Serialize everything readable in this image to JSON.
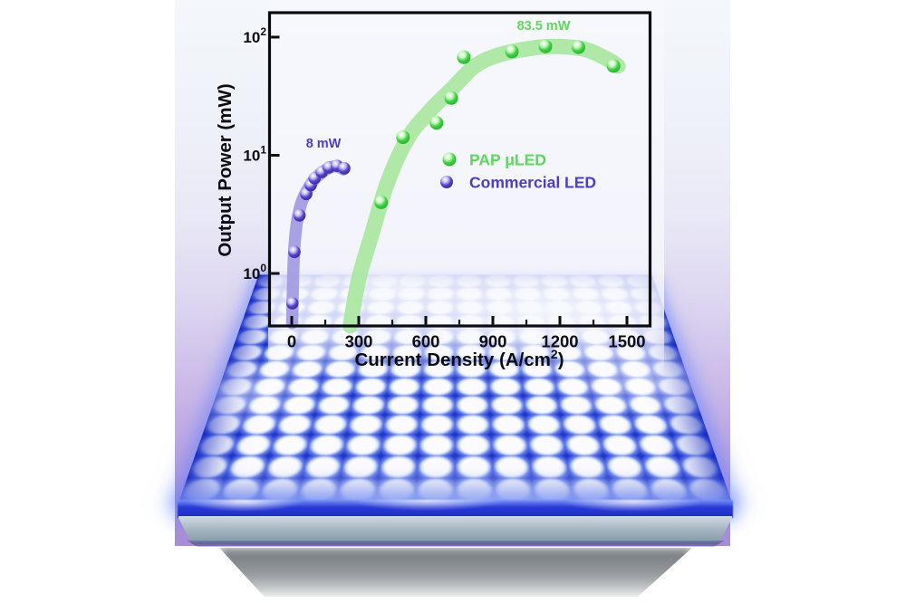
{
  "scene": {
    "description_colors": {
      "page_background": "#ffffff",
      "figure_gradient_top": "#f4f7fb",
      "figure_gradient_bottom": "#a78cd7",
      "panel_blue": "#2238cc",
      "led_dot": "#ffffff",
      "substrate_gray": "#a4b5c2",
      "shadow_gray": "#7d848a",
      "axis_black": "#0b0b12"
    },
    "panel": {
      "led_columns": 14,
      "led_rows": 13
    }
  },
  "chart_data": {
    "type": "scatter",
    "title": "",
    "xlabel": "Current Density (A/cm²)",
    "ylabel": "Output Power (mW)",
    "x_ticks": [
      0,
      300,
      600,
      900,
      1200,
      1500
    ],
    "x_minor_ticks": [
      150,
      450,
      750,
      1050,
      1350
    ],
    "y_scale": "log",
    "y_tick_base": "10",
    "y_tick_exponents": [
      0,
      1,
      2
    ],
    "xlim": [
      -100,
      1600
    ],
    "ylim": [
      0.35,
      160
    ],
    "grid": false,
    "legend_position": "center-right",
    "series": [
      {
        "name": "PAP μLED",
        "marker_color": "#3fcf42",
        "band_color": "#a9e7a1",
        "text_color": "#5ed85c",
        "x": [
          400,
          498,
          648,
          714,
          770,
          985,
          1135,
          1283,
          1440
        ],
        "y": [
          4.0,
          14.2,
          18.8,
          30.5,
          67.5,
          75.5,
          83.5,
          82.0,
          57.0
        ],
        "trend_band": [
          [
            262,
            0.36
          ],
          [
            300,
            0.9
          ],
          [
            360,
            2.2
          ],
          [
            430,
            6
          ],
          [
            520,
            14
          ],
          [
            620,
            24
          ],
          [
            720,
            37
          ],
          [
            820,
            57
          ],
          [
            920,
            70
          ],
          [
            1020,
            77.5
          ],
          [
            1120,
            82.5
          ],
          [
            1220,
            83
          ],
          [
            1320,
            78
          ],
          [
            1420,
            64
          ],
          [
            1460,
            57
          ]
        ],
        "annotation": {
          "text": "83.5 mW",
          "x": 1127,
          "y": 115
        }
      },
      {
        "name": "Commercial LED",
        "marker_color": "#5243c8",
        "band_color": "#a29ae2",
        "text_color": "#4b3ec5",
        "x": [
          3,
          12,
          35,
          65,
          85,
          102,
          134,
          166,
          202,
          235
        ],
        "y": [
          0.56,
          1.52,
          3.1,
          4.7,
          5.6,
          6.4,
          7.2,
          7.9,
          8.15,
          7.75
        ],
        "trend_band": [
          [
            2,
            0.38
          ],
          [
            4,
            0.62
          ],
          [
            10,
            1.45
          ],
          [
            22,
            2.6
          ],
          [
            42,
            3.9
          ],
          [
            70,
            5.1
          ],
          [
            100,
            6.2
          ],
          [
            135,
            7.15
          ],
          [
            170,
            7.85
          ],
          [
            200,
            8.05
          ],
          [
            232,
            7.6
          ]
        ],
        "annotation": {
          "text": "8 mW",
          "x": 142,
          "y": 11.6
        }
      }
    ]
  }
}
